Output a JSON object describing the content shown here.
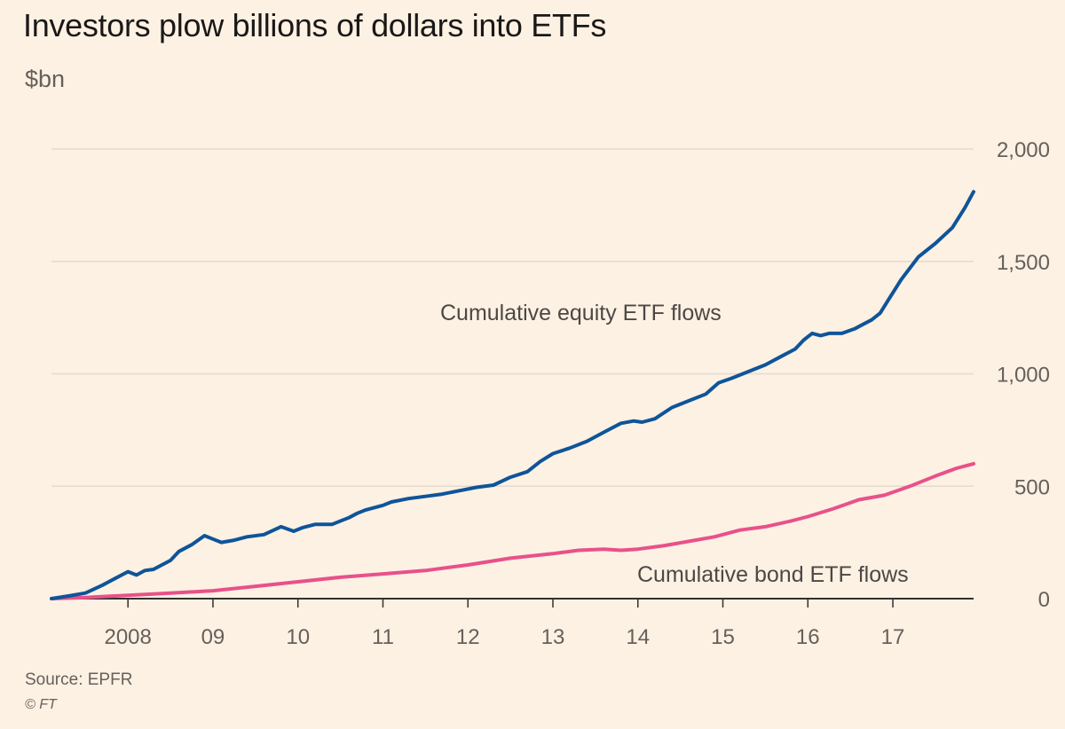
{
  "title": "Investors plow billions of dollars into ETFs",
  "subtitle": "$bn",
  "source": "Source: EPFR",
  "credit": "© FT",
  "chart_data": {
    "type": "line",
    "ylabel": "$bn",
    "ylim": [
      0,
      2000
    ],
    "y_ticks": [
      0,
      500,
      1000,
      1500,
      2000
    ],
    "y_tick_labels": [
      "0",
      "500",
      "1,000",
      "1,500",
      "2,000"
    ],
    "y_axis_side": "right",
    "x_tick_labels": [
      "2008",
      "09",
      "10",
      "11",
      "12",
      "13",
      "14",
      "15",
      "16",
      "17"
    ],
    "x_tick_values": [
      2008,
      2009,
      2010,
      2011,
      2012,
      2013,
      2014,
      2015,
      2016,
      2017
    ],
    "xlim": [
      2007.1,
      2017.95
    ],
    "grid": "horizontal",
    "colors": {
      "equity": "#0f5499",
      "bond": "#e8518a",
      "grid": "#e6d9ce",
      "axis": "#33302e"
    },
    "series": [
      {
        "key": "equity",
        "name": "Cumulative equity ETF flows",
        "x": [
          2007.1,
          2007.3,
          2007.5,
          2007.7,
          2007.85,
          2008.0,
          2008.1,
          2008.2,
          2008.3,
          2008.5,
          2008.6,
          2008.75,
          2008.9,
          2009.0,
          2009.1,
          2009.25,
          2009.4,
          2009.6,
          2009.8,
          2009.95,
          2010.05,
          2010.2,
          2010.4,
          2010.6,
          2010.7,
          2010.8,
          2011.0,
          2011.1,
          2011.3,
          2011.5,
          2011.7,
          2011.9,
          2012.1,
          2012.3,
          2012.5,
          2012.7,
          2012.85,
          2013.0,
          2013.2,
          2013.4,
          2013.6,
          2013.8,
          2013.95,
          2014.05,
          2014.2,
          2014.4,
          2014.6,
          2014.8,
          2014.95,
          2015.1,
          2015.3,
          2015.5,
          2015.7,
          2015.85,
          2015.95,
          2016.05,
          2016.15,
          2016.25,
          2016.4,
          2016.55,
          2016.65,
          2016.75,
          2016.85,
          2016.95,
          2017.1,
          2017.3,
          2017.5,
          2017.7,
          2017.85,
          2017.95
        ],
        "values": [
          0,
          12,
          25,
          60,
          90,
          120,
          105,
          125,
          130,
          170,
          210,
          240,
          280,
          265,
          250,
          260,
          275,
          285,
          320,
          300,
          315,
          330,
          330,
          360,
          380,
          395,
          415,
          430,
          445,
          455,
          465,
          480,
          495,
          505,
          540,
          565,
          610,
          645,
          670,
          700,
          740,
          780,
          790,
          785,
          800,
          850,
          880,
          910,
          960,
          980,
          1010,
          1040,
          1080,
          1110,
          1150,
          1180,
          1170,
          1180,
          1180,
          1200,
          1220,
          1240,
          1270,
          1330,
          1420,
          1520,
          1580,
          1650,
          1740,
          1810
        ]
      },
      {
        "key": "bond",
        "name": "Cumulative bond ETF flows",
        "x": [
          2007.1,
          2007.5,
          2008.0,
          2008.5,
          2009.0,
          2009.5,
          2010.0,
          2010.5,
          2011.0,
          2011.5,
          2012.0,
          2012.5,
          2013.0,
          2013.3,
          2013.6,
          2013.8,
          2014.0,
          2014.3,
          2014.6,
          2014.9,
          2015.2,
          2015.5,
          2015.8,
          2016.0,
          2016.3,
          2016.6,
          2016.9,
          2017.2,
          2017.5,
          2017.75,
          2017.95
        ],
        "values": [
          0,
          5,
          15,
          25,
          35,
          55,
          75,
          95,
          110,
          125,
          150,
          180,
          200,
          215,
          220,
          215,
          220,
          235,
          255,
          275,
          305,
          320,
          345,
          365,
          400,
          440,
          460,
          500,
          545,
          580,
          600
        ]
      }
    ]
  }
}
